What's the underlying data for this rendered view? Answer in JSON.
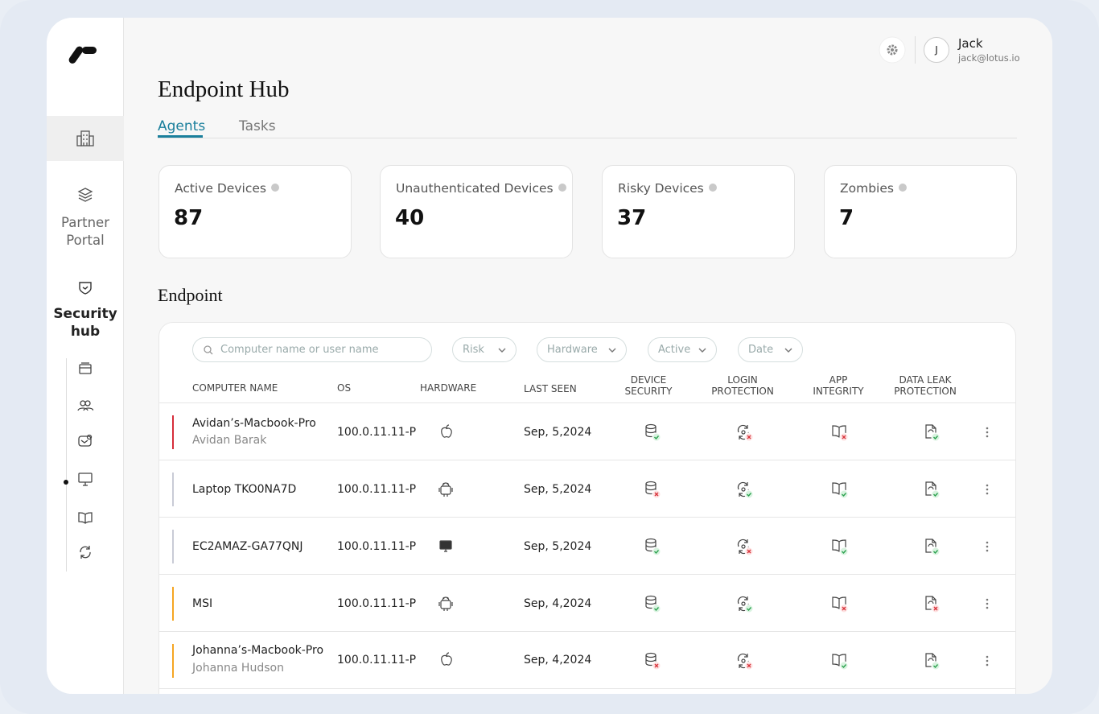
{
  "sidebar": {
    "items": [
      {
        "label": "Partner Portal"
      },
      {
        "label": "Security hub"
      }
    ]
  },
  "user": {
    "initial": "J",
    "name": "Jack",
    "email": "jack@lotus.io"
  },
  "page": {
    "title": "Endpoint Hub",
    "tabs": [
      "Agents",
      "Tasks"
    ]
  },
  "stats": [
    {
      "label": "Active Devices",
      "value": 87
    },
    {
      "label": "Unauthenticated Devices",
      "value": 40
    },
    {
      "label": "Risky Devices",
      "value": 37
    },
    {
      "label": "Zombies",
      "value": 7
    }
  ],
  "section_title": "Endpoint",
  "filters": {
    "search_placeholder": "Computer name or user name",
    "dropdowns": [
      "Risk",
      "Hardware",
      "Active",
      "Date"
    ]
  },
  "table": {
    "columns": [
      "COMPUTER NAME",
      "OS",
      "HARDWARE",
      "LAST SEEN",
      "DEVICE SECURITY",
      "LOGIN PROTECTION",
      "APP INTEGRITY",
      "DATA LEAK PROTECTION"
    ],
    "rows": [
      {
        "name": "Avidan’s-Macbook-Pro",
        "user": "Avidan Barak",
        "os": "100.0.11.11-P",
        "last_seen": "Sep, 5,2024"
      },
      {
        "name": "Laptop TKO0NA7D",
        "os": "100.0.11.11-P",
        "last_seen": "Sep, 5,2024"
      },
      {
        "name": "EC2AMAZ-GA77QNJ",
        "os": "100.0.11.11-P",
        "last_seen": "Sep, 5,2024"
      },
      {
        "name": "MSI",
        "os": "100.0.11.11-P",
        "last_seen": "Sep, 4,2024"
      },
      {
        "name": "Johanna’s-Macbook-Pro",
        "user": "Johanna Hudson",
        "os": "100.0.11.11-P",
        "last_seen": "Sep, 4,2024"
      }
    ]
  }
}
